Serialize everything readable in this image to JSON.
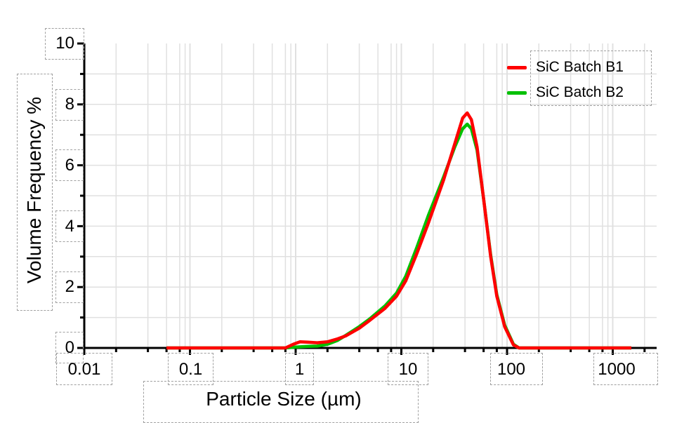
{
  "chart_data": {
    "type": "line",
    "title": "",
    "xlabel": "Particle Size (µm)",
    "ylabel": "Volume Frequency %",
    "xscale": "log",
    "xlim": [
      0.01,
      2000
    ],
    "ylim": [
      0,
      10
    ],
    "grid": true,
    "legend_position": "upper right",
    "x_tick_labels": [
      "0.01",
      "0.1",
      "1",
      "10",
      "100",
      "1000"
    ],
    "y_tick_labels": [
      "0",
      "2",
      "4",
      "6",
      "8",
      "10"
    ],
    "series": [
      {
        "name": "SiC Batch B1",
        "color": "#ff0000",
        "x": [
          0.06,
          0.2,
          0.5,
          0.8,
          0.95,
          1.1,
          1.3,
          1.6,
          2.0,
          2.5,
          3.0,
          4.0,
          5.0,
          7.0,
          9.0,
          11,
          14,
          18,
          25,
          32,
          38,
          42,
          46,
          52,
          60,
          70,
          80,
          95,
          115,
          130,
          200,
          500,
          1500
        ],
        "values": [
          0,
          0,
          0,
          0,
          0.12,
          0.2,
          0.19,
          0.17,
          0.2,
          0.3,
          0.4,
          0.65,
          0.9,
          1.3,
          1.7,
          2.2,
          3.1,
          4.1,
          5.5,
          6.7,
          7.55,
          7.72,
          7.5,
          6.6,
          4.9,
          3.0,
          1.7,
          0.7,
          0.1,
          0,
          0,
          0,
          0
        ]
      },
      {
        "name": "SiC Batch B2",
        "color": "#00c000",
        "x": [
          0.06,
          0.2,
          0.5,
          0.8,
          1.0,
          1.3,
          1.6,
          2.0,
          2.5,
          3.0,
          4.0,
          5.0,
          7.0,
          9.0,
          11,
          14,
          18,
          25,
          32,
          38,
          42,
          46,
          52,
          60,
          70,
          80,
          95,
          115,
          130,
          200,
          500,
          1500
        ],
        "values": [
          0,
          0,
          0,
          0,
          0.03,
          0.05,
          0.06,
          0.12,
          0.25,
          0.42,
          0.7,
          0.95,
          1.38,
          1.8,
          2.35,
          3.3,
          4.35,
          5.6,
          6.6,
          7.2,
          7.35,
          7.2,
          6.5,
          4.9,
          3.05,
          1.75,
          0.75,
          0.12,
          0,
          0,
          0,
          0
        ]
      }
    ]
  },
  "labels": {
    "xlabel": "Particle Size (µm)",
    "ylabel": "Volume Frequency %",
    "x_ticks": [
      "0.01",
      "0.1",
      "1",
      "10",
      "100",
      "1000"
    ],
    "y_ticks": [
      "0",
      "2",
      "4",
      "6",
      "8",
      "10"
    ],
    "legend": [
      "SiC Batch B1",
      "SiC Batch B2"
    ]
  },
  "colors": {
    "b1": "#ff0000",
    "b2": "#00c000",
    "grid": "#e0e0e0",
    "axis": "#000000"
  }
}
